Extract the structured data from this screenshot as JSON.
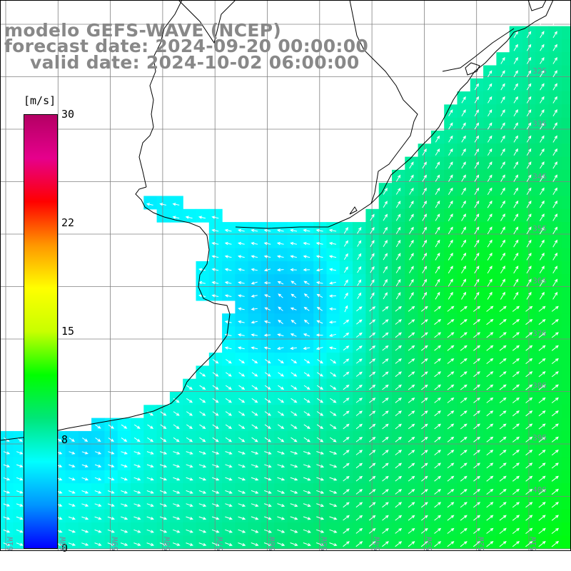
{
  "title": {
    "line1": "modelo GEFS-WAVE (NCEP)",
    "line2": "forecast date: 2024-09-20 00:00:00",
    "line3": "    valid date: 2024-10-02 06:00:00"
  },
  "colorbar": {
    "unit": "[m/s]",
    "ticks": [
      "30",
      "22",
      "15",
      "8",
      "0"
    ],
    "stops": [
      "#0000ff",
      "#0096ff",
      "#00ffff",
      "#00e678",
      "#00ff00",
      "#c8ff00",
      "#ffff00",
      "#ff9600",
      "#ff0000",
      "#e6008c",
      "#b40064"
    ],
    "range": [
      0,
      30
    ]
  },
  "map": {
    "variable": "wind speed and direction",
    "land_color": "#ffffff",
    "coast_color": "#000000",
    "grid_color": "#808080",
    "lat_labels": [
      "32S",
      "33S",
      "34S",
      "35S",
      "36S",
      "37S",
      "38S",
      "39S",
      "40S"
    ],
    "lon_labels": [
      "61W",
      "60W",
      "59W",
      "58W",
      "57W",
      "56W",
      "55W",
      "54W",
      "53W",
      "52W",
      "51W"
    ]
  }
}
